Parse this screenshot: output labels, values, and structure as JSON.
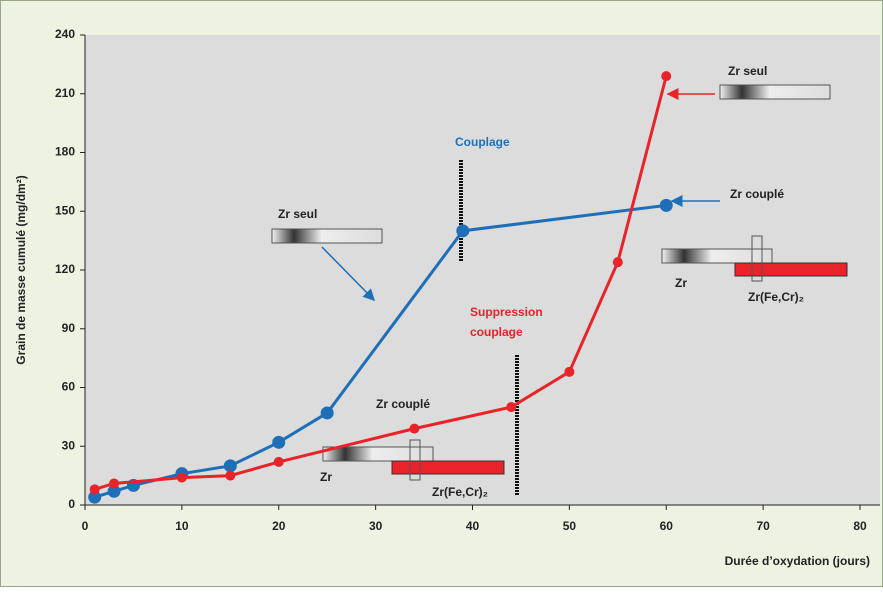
{
  "chart_data": {
    "type": "line",
    "xlabel": "Durée d’oxydation (jours)",
    "ylabel": "Grain de masse cumulé (mg/dm²)",
    "xlim": [
      0,
      80
    ],
    "xticks": [
      0,
      10,
      20,
      30,
      40,
      50,
      60,
      70,
      80
    ],
    "ylim": [
      0,
      240
    ],
    "yticks": [
      0,
      30,
      60,
      90,
      120,
      150,
      180,
      210,
      240
    ],
    "series": [
      {
        "color": "#1f6fb8",
        "x": [
          1,
          3,
          5,
          10,
          15,
          20,
          25,
          39,
          60
        ],
        "values": [
          4,
          7,
          10,
          16,
          20,
          32,
          47,
          140,
          153
        ]
      },
      {
        "color": "#e8232a",
        "x": [
          1,
          3,
          10,
          15,
          20,
          34,
          44,
          50,
          55,
          60
        ],
        "values": [
          8,
          11,
          14,
          15,
          22,
          39,
          50,
          68,
          124,
          219
        ]
      }
    ],
    "annotations": [
      "Couplage",
      "Suppression",
      "couplage",
      "Zr seul",
      "Zr couplé",
      "Zr",
      "Zr(Fe,Cr)₂",
      "Zr seul",
      "Zr couplé",
      "Zr",
      "Zr(Fe,Cr)₂"
    ]
  }
}
